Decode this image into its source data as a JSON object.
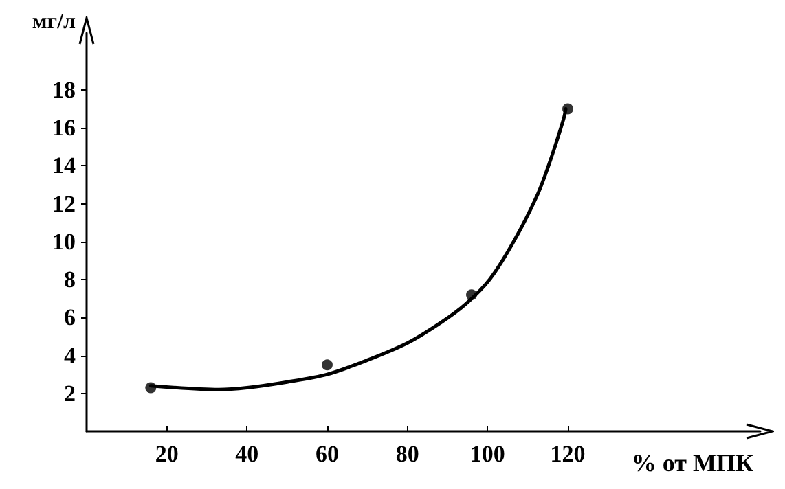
{
  "chart_data": {
    "type": "scatter",
    "xlabel": "% от МПК",
    "ylabel": "мг/л",
    "xlim": [
      0,
      168
    ],
    "ylim": [
      0,
      21
    ],
    "xticks": [
      20,
      40,
      60,
      80,
      100,
      120
    ],
    "yticks": [
      2,
      4,
      6,
      8,
      10,
      12,
      14,
      16,
      18
    ],
    "grid": false,
    "marker": "circle",
    "series": [
      {
        "color": "#000000",
        "x": [
          16,
          60,
          96,
          120
        ],
        "values": [
          2.3,
          3.5,
          7.2,
          17.0
        ]
      },
      {
        "type": "line",
        "color": "#000000",
        "marker": "none",
        "line_style": "solid",
        "x": [
          16,
          33,
          40,
          50,
          60,
          70,
          80,
          88.5,
          94.5,
          100.5,
          106.5,
          112.5,
          116,
          119,
          119.5
        ],
        "values": [
          2.4,
          2.2,
          2.3,
          2.6,
          3.0,
          3.75,
          4.65,
          5.75,
          6.7,
          8.0,
          10.0,
          12.5,
          14.5,
          16.5,
          17.0
        ]
      }
    ]
  }
}
